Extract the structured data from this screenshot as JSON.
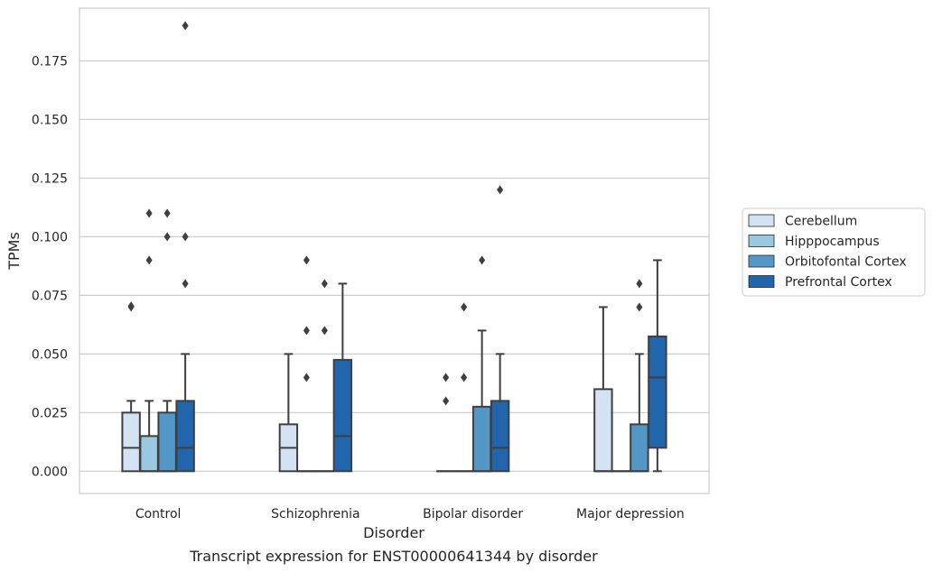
{
  "chart_data": {
    "type": "box",
    "title": "",
    "caption": "Transcript expression for ENST00000641344 by disorder",
    "xlabel": "Disorder",
    "ylabel": "TPMs",
    "categories": [
      "Control",
      "Schizophrenia",
      "Bipolar disorder",
      "Major depression"
    ],
    "ylim": [
      -0.0095,
      0.1975
    ],
    "yticks": [
      "0.000",
      "0.025",
      "0.050",
      "0.075",
      "0.100",
      "0.125",
      "0.150",
      "0.175"
    ],
    "grid": "horizontal",
    "legend_position": "right",
    "series": [
      {
        "name": "Cerebellum",
        "color": "#d3e3f3",
        "boxes": [
          {
            "min": 0.0,
            "q1": 0.0,
            "median": 0.01,
            "q3": 0.025,
            "max": 0.03,
            "outliers": [
              0.07,
              0.0705
            ]
          },
          {
            "min": 0.0,
            "q1": 0.0,
            "median": 0.01,
            "q3": 0.02,
            "max": 0.05,
            "outliers": []
          },
          {
            "min": 0.0,
            "q1": 0.0,
            "median": 0.0,
            "q3": 0.0,
            "max": 0.0,
            "outliers": [
              0.03,
              0.04
            ]
          },
          {
            "min": 0.0,
            "q1": 0.0,
            "median": 0.0,
            "q3": 0.035,
            "max": 0.07,
            "outliers": []
          }
        ]
      },
      {
        "name": "Hipppocampus",
        "color": "#9ac8e1",
        "boxes": [
          {
            "min": 0.0,
            "q1": 0.0,
            "median": 0.0,
            "q3": 0.015,
            "max": 0.03,
            "outliers": [
              0.09,
              0.11
            ]
          },
          {
            "min": 0.0,
            "q1": 0.0,
            "median": 0.0,
            "q3": 0.0,
            "max": 0.0,
            "outliers": [
              0.04,
              0.06,
              0.09
            ]
          },
          {
            "min": 0.0,
            "q1": 0.0,
            "median": 0.0,
            "q3": 0.0,
            "max": 0.0,
            "outliers": [
              0.04,
              0.07
            ]
          },
          {
            "min": 0.0,
            "q1": 0.0,
            "median": 0.0,
            "q3": 0.0,
            "max": 0.0,
            "outliers": []
          }
        ]
      },
      {
        "name": "Orbitofontal Cortex",
        "color": "#5297c6",
        "boxes": [
          {
            "min": 0.0,
            "q1": 0.0,
            "median": 0.0,
            "q3": 0.025,
            "max": 0.03,
            "outliers": [
              0.1,
              0.11
            ]
          },
          {
            "min": 0.0,
            "q1": 0.0,
            "median": 0.0,
            "q3": 0.0,
            "max": 0.0,
            "outliers": [
              0.06,
              0.08
            ]
          },
          {
            "min": 0.0,
            "q1": 0.0,
            "median": 0.0,
            "q3": 0.0275,
            "max": 0.06,
            "outliers": [
              0.09
            ]
          },
          {
            "min": 0.0,
            "q1": 0.0,
            "median": 0.0,
            "q3": 0.02,
            "max": 0.05,
            "outliers": [
              0.07,
              0.08
            ]
          }
        ]
      },
      {
        "name": "Prefrontal Cortex",
        "color": "#2166ac",
        "boxes": [
          {
            "min": 0.0,
            "q1": 0.0,
            "median": 0.01,
            "q3": 0.03,
            "max": 0.05,
            "outliers": [
              0.08,
              0.1,
              0.19
            ]
          },
          {
            "min": 0.0,
            "q1": 0.0,
            "median": 0.015,
            "q3": 0.0475,
            "max": 0.08,
            "outliers": []
          },
          {
            "min": 0.0,
            "q1": 0.0,
            "median": 0.01,
            "q3": 0.03,
            "max": 0.05,
            "outliers": [
              0.12
            ]
          },
          {
            "min": 0.0,
            "q1": 0.01,
            "median": 0.04,
            "q3": 0.0575,
            "max": 0.09,
            "outliers": []
          }
        ]
      }
    ]
  }
}
